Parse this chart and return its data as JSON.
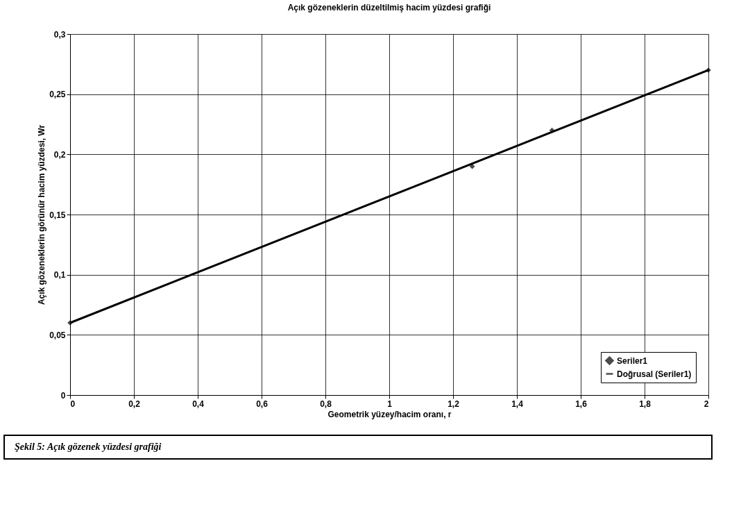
{
  "chart_data": {
    "type": "scatter",
    "title": "Açık gözeneklerin düzeltilmiş hacim yüzdesi grafiği",
    "xlabel": "Geometrik yüzey/hacim oranı, r",
    "ylabel": "Açık gözeneklerin görünür hacim yüzdesi, Wr",
    "annotations": [
      "Şekil 5:   Açık gözenek yüzdesi grafiği"
    ],
    "series": [
      {
        "name": "Seriler1",
        "color": "#000000",
        "x": [
          0,
          1.26,
          1.51,
          2
        ],
        "values": [
          0.06,
          0.19,
          0.22,
          0.27
        ]
      },
      {
        "name": "Doğrusal (Seriler1)",
        "color": "#000000",
        "type": "line",
        "marker": "none",
        "x": [
          0,
          2
        ],
        "values": [
          0.06,
          0.27
        ]
      }
    ],
    "xlim": [
      0,
      2
    ],
    "ylim": [
      0,
      0.3
    ],
    "xticks": [
      {
        "value": 0,
        "label": "0"
      },
      {
        "value": 0.2,
        "label": "0,2"
      },
      {
        "value": 0.4,
        "label": "0,4"
      },
      {
        "value": 0.6,
        "label": "0,6"
      },
      {
        "value": 0.8,
        "label": "0,8"
      },
      {
        "value": 1,
        "label": "1"
      },
      {
        "value": 1.2,
        "label": "1,2"
      },
      {
        "value": 1.4,
        "label": "1,4"
      },
      {
        "value": 1.6,
        "label": "1,6"
      },
      {
        "value": 1.8,
        "label": "1,8"
      },
      {
        "value": 2,
        "label": "2"
      }
    ],
    "yticks": [
      {
        "value": 0,
        "label": "0"
      },
      {
        "value": 0.05,
        "label": "0,05"
      },
      {
        "value": 0.1,
        "label": "0,1"
      },
      {
        "value": 0.15,
        "label": "0,15"
      },
      {
        "value": 0.2,
        "label": "0,2"
      },
      {
        "value": 0.25,
        "label": "0,25"
      },
      {
        "value": 0.3,
        "label": "0,3"
      }
    ],
    "grid": true,
    "legend": "bottom right",
    "marker": "diamond",
    "line_style": "solid"
  }
}
